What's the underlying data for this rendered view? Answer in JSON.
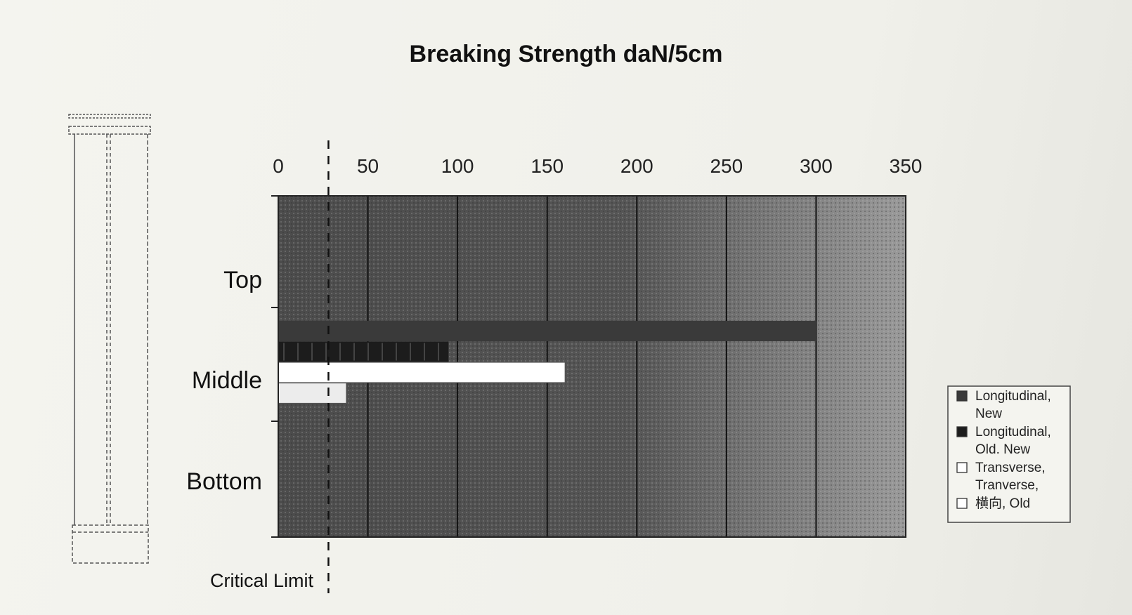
{
  "chart_data": {
    "type": "bar",
    "orientation": "horizontal",
    "title": "Breaking Strength daN/5cm",
    "categories": [
      "Top",
      "Middle",
      "Bottom"
    ],
    "x_ticks": [
      "0",
      "50",
      "100",
      "150",
      "200",
      "250",
      "300",
      "350"
    ],
    "xlim": [
      0,
      350
    ],
    "series": [
      {
        "name_lines": [
          "Longitudinal,",
          "New"
        ],
        "color": "#3a3a3a",
        "values": [
          null,
          300,
          null
        ]
      },
      {
        "name_lines": [
          "Longitudinal,",
          "Old. New"
        ],
        "color": "#1c1c1c",
        "values": [
          null,
          95,
          null
        ]
      },
      {
        "name_lines": [
          "Transverse,",
          "Tranverse,"
        ],
        "color": "#ffffff",
        "values": [
          null,
          160,
          null
        ]
      },
      {
        "name_lines": [
          "横向, Old"
        ],
        "color": "#ececec",
        "values": [
          null,
          38,
          null
        ]
      }
    ],
    "critical_limit": {
      "label": "Critical Limit",
      "value": 28
    },
    "grid": true,
    "legend_position": "right"
  },
  "colors": {
    "plot_dark": "#4a4a4a",
    "plot_light": "#8a8a8a",
    "gridline": "#111111"
  }
}
